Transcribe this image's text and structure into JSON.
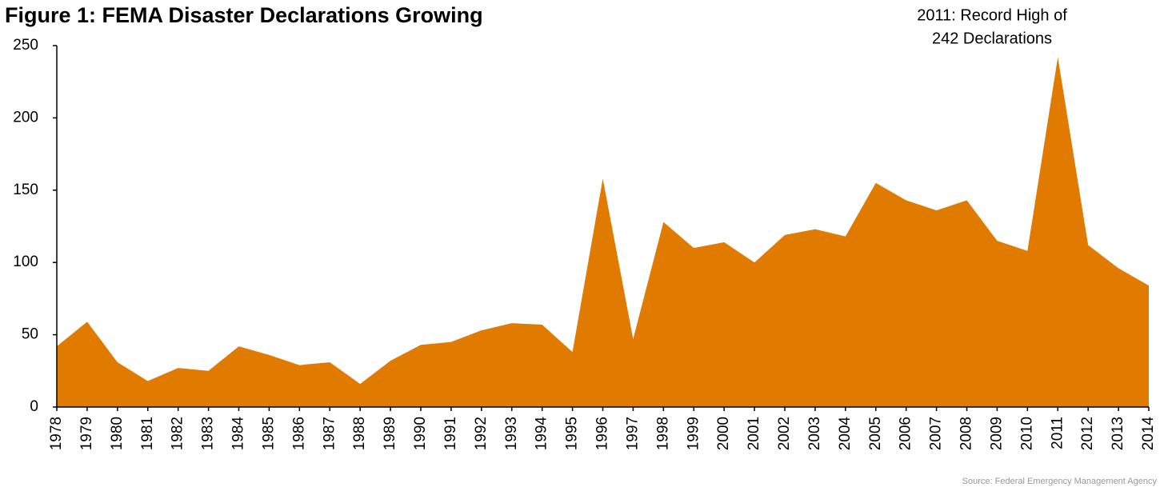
{
  "chart_data": {
    "type": "area",
    "title": "Figure 1: FEMA Disaster Declarations Growing",
    "annotation": [
      "2011: Record High of",
      "242 Declarations"
    ],
    "source": "Source: Federal Emergency Management Agency",
    "categories": [
      "1978",
      "1979",
      "1980",
      "1981",
      "1982",
      "1983",
      "1984",
      "1985",
      "1986",
      "1987",
      "1988",
      "1989",
      "1990",
      "1991",
      "1992",
      "1993",
      "1994",
      "1995",
      "1996",
      "1997",
      "1998",
      "1999",
      "2000",
      "2001",
      "2002",
      "2003",
      "2004",
      "2005",
      "2006",
      "2007",
      "2008",
      "2009",
      "2010",
      "2011",
      "2012",
      "2013",
      "2014"
    ],
    "values": [
      42,
      59,
      31,
      18,
      27,
      25,
      42,
      36,
      29,
      31,
      16,
      32,
      43,
      45,
      53,
      58,
      57,
      38,
      158,
      47,
      128,
      110,
      114,
      100,
      119,
      123,
      118,
      155,
      143,
      136,
      143,
      115,
      108,
      242,
      112,
      96,
      84
    ],
    "color": "#e07b00",
    "ylim": [
      0,
      250
    ],
    "yticks": [
      0,
      50,
      100,
      150,
      200,
      250
    ],
    "grid": false
  }
}
